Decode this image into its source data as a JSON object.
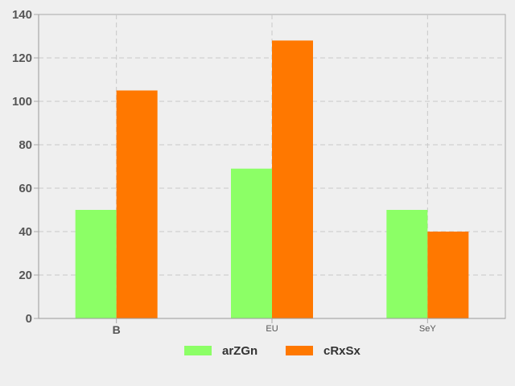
{
  "chart_data": {
    "type": "bar",
    "title": "",
    "xlabel": "",
    "ylabel": "",
    "categories": [
      "B",
      "EU",
      "SeY"
    ],
    "series": [
      {
        "name": "arZGn",
        "values": [
          50,
          69,
          50
        ],
        "color": "#8cff66"
      },
      {
        "name": "cRxSx",
        "values": [
          105,
          128,
          40
        ],
        "color": "#ff7800"
      }
    ],
    "ylim": [
      0,
      140
    ],
    "yticks": [
      0,
      20,
      40,
      60,
      80,
      100,
      120,
      140
    ],
    "grid": true,
    "legend_position": "bottom-center"
  }
}
